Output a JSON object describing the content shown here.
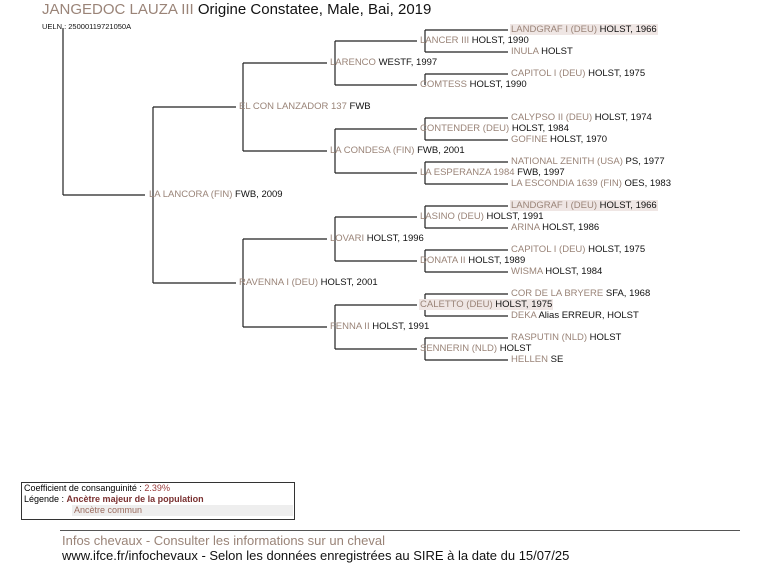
{
  "header": {
    "horse_name": "JANGEDOC LAUZA III",
    "horse_info": "Origine Constatee, Male, Bai, 2019",
    "ueln": "UELN : 25000119721050A"
  },
  "pedigree": {
    "name": "LA LANCORA (FIN)",
    "info": "FWB, 2009",
    "sire": {
      "name": "EL CON LANZADOR 137",
      "info": "FWB",
      "sire": {
        "name": "LARENCO",
        "info": "WESTF, 1997",
        "sire": {
          "name": "LANCER III",
          "info": "HOLST, 1990",
          "sire": {
            "name": "LANDGRAF I (DEU)",
            "info": "HOLST, 1966",
            "common": true
          },
          "dam": {
            "name": "INULA",
            "info": "HOLST"
          }
        },
        "dam": {
          "name": "COMTESS",
          "info": "HOLST, 1990",
          "sire": {
            "name": "CAPITOL I (DEU)",
            "info": "HOLST, 1975"
          }
        }
      },
      "dam": {
        "name": "LA CONDESA (FIN)",
        "info": "FWB, 2001",
        "sire": {
          "name": "CONTENDER (DEU)",
          "info": "HOLST, 1984",
          "sire": {
            "name": "CALYPSO II (DEU)",
            "info": "HOLST, 1974"
          },
          "dam": {
            "name": "GOFINE",
            "info": "HOLST, 1970"
          }
        },
        "dam": {
          "name": "LA ESPERANZA 1984",
          "info": "FWB, 1997",
          "sire": {
            "name": "NATIONAL ZENITH (USA)",
            "info": "PS, 1977"
          },
          "dam": {
            "name": "LA ESCONDIA 1639 (FIN)",
            "info": "OES, 1983"
          }
        }
      }
    },
    "dam": {
      "name": "RAVENNA I (DEU)",
      "info": "HOLST, 2001",
      "sire": {
        "name": "LOVARI",
        "info": "HOLST, 1996",
        "sire": {
          "name": "LASINO (DEU)",
          "info": "HOLST, 1991",
          "sire": {
            "name": "LANDGRAF I (DEU)",
            "info": "HOLST, 1966",
            "common": true
          },
          "dam": {
            "name": "ARINA",
            "info": "HOLST, 1986"
          }
        },
        "dam": {
          "name": "DONATA II",
          "info": "HOLST, 1989",
          "sire": {
            "name": "CAPITOL I (DEU)",
            "info": "HOLST, 1975"
          },
          "dam": {
            "name": "WISMA",
            "info": "HOLST, 1984"
          }
        }
      },
      "dam": {
        "name": "FENNA II",
        "info": "HOLST, 1991",
        "sire": {
          "name": "CALETTO (DEU)",
          "info": "HOLST, 1975",
          "common": true,
          "sire": {
            "name": "COR DE LA BRYERE",
            "info": "SFA, 1968"
          },
          "dam": {
            "name": "DEKA",
            "info": "Alias ERREUR, HOLST"
          }
        },
        "dam": {
          "name": "SENNERIN (NLD)",
          "info": "HOLST",
          "sire": {
            "name": "RASPUTIN (NLD)",
            "info": "HOLST"
          },
          "dam": {
            "name": "HELLEN",
            "info": "SE"
          }
        }
      }
    }
  },
  "legend": {
    "coef_label": "Coefficient de consanguinité : ",
    "coef_value": "2.39%",
    "legend_label": "Légende : ",
    "major": "Ancètre majeur de la population",
    "common": "Ancètre commun"
  },
  "footer": {
    "line1": "Infos chevaux - Consulter les informations sur un cheval",
    "line2": "www.ifce.fr/infochevaux - Selon les données enregistrées au SIRE à la date du 15/07/25"
  },
  "colors": {
    "name": "#9a8478",
    "common_bg": "#efe6e4",
    "text": "#111111"
  }
}
